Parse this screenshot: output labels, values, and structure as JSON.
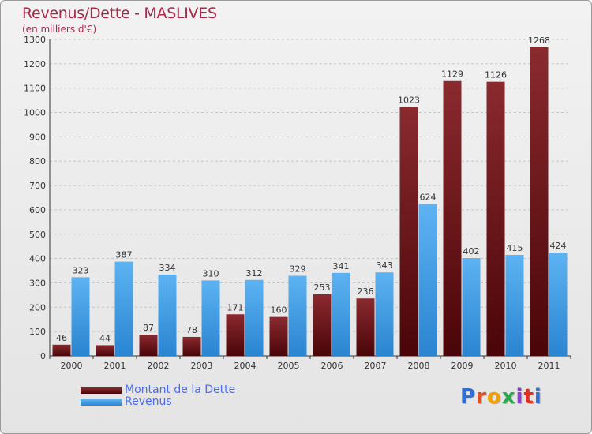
{
  "header": {
    "title": "Revenus/Dette - MASLIVES",
    "subtitle": "(en milliers d'€)"
  },
  "chart_data": {
    "type": "bar",
    "categories": [
      "2000",
      "2001",
      "2002",
      "2003",
      "2004",
      "2005",
      "2006",
      "2007",
      "2008",
      "2009",
      "2010",
      "2011"
    ],
    "series": [
      {
        "name": "Montant de la Dette",
        "color": "#6e1015",
        "values": [
          46,
          44,
          87,
          78,
          171,
          160,
          253,
          236,
          1023,
          1129,
          1126,
          1268
        ]
      },
      {
        "name": "Revenus",
        "color": "#3d9be6",
        "values": [
          323,
          387,
          334,
          310,
          312,
          329,
          341,
          343,
          624,
          402,
          415,
          424
        ]
      }
    ],
    "ylim": [
      0,
      1300
    ],
    "yticks": [
      0,
      100,
      200,
      300,
      400,
      500,
      600,
      700,
      800,
      900,
      1000,
      1100,
      1200,
      1300
    ],
    "grid": true,
    "legend": "bottom-left"
  },
  "logo": {
    "text": "Proxiti",
    "colors": [
      "#2f6fd6",
      "#e84c1a",
      "#f0a000",
      "#2aa84a",
      "#8a3fd1",
      "#e0301e",
      "#2f6fd6"
    ]
  }
}
